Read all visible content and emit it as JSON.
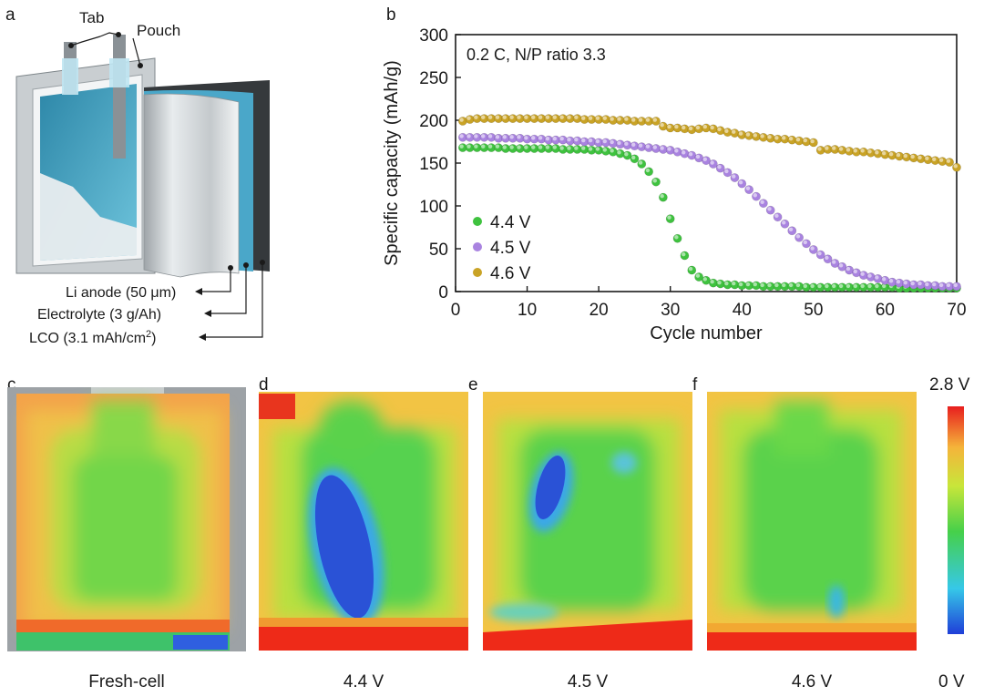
{
  "panel_labels": {
    "a": "a",
    "b": "b",
    "c": "c",
    "d": "d",
    "e": "e",
    "f": "f"
  },
  "schematic": {
    "tab_label": "Tab",
    "pouch_label": "Pouch",
    "anode_label": "Li anode (50 μm)",
    "electrolyte_label": "Electrolyte (3 g/Ah)",
    "lco_label": "LCO (3.1 mAh/cm",
    "lco_superscript": "2",
    "lco_suffix": ")"
  },
  "chart_data": {
    "type": "scatter",
    "title": "0.2 C, N/P ratio 3.3",
    "xlabel": "Cycle number",
    "ylabel": "Specific capacity (mAh/g)",
    "xlim": [
      0,
      70
    ],
    "ylim": [
      0,
      300
    ],
    "xticks": [
      0,
      10,
      20,
      30,
      40,
      50,
      60,
      70
    ],
    "yticks": [
      0,
      50,
      100,
      150,
      200,
      250,
      300
    ],
    "legend_position": "bottom-left",
    "series": [
      {
        "name": "4.4 V",
        "color": "#3fc23f",
        "x": [
          1,
          2,
          3,
          4,
          5,
          6,
          7,
          8,
          9,
          10,
          11,
          12,
          13,
          14,
          15,
          16,
          17,
          18,
          19,
          20,
          21,
          22,
          23,
          24,
          25,
          26,
          27,
          28,
          29,
          30,
          31,
          32,
          33,
          34,
          35,
          36,
          37,
          38,
          39,
          40,
          41,
          42,
          43,
          44,
          45,
          46,
          47,
          48,
          49,
          50,
          51,
          52,
          53,
          54,
          55,
          56,
          57,
          58,
          59,
          60,
          61,
          62,
          63,
          64,
          65,
          66,
          67,
          68,
          69,
          70
        ],
        "values": [
          168,
          168,
          168,
          168,
          168,
          168,
          167,
          167,
          167,
          167,
          167,
          167,
          167,
          167,
          166,
          166,
          166,
          166,
          165,
          165,
          164,
          163,
          161,
          159,
          155,
          149,
          140,
          128,
          110,
          85,
          62,
          42,
          25,
          17,
          13,
          10,
          9,
          8,
          8,
          7,
          7,
          7,
          6,
          6,
          6,
          6,
          6,
          6,
          5,
          5,
          5,
          5,
          5,
          5,
          5,
          5,
          5,
          5,
          5,
          5,
          5,
          4,
          4,
          4,
          4,
          4,
          4,
          4,
          4,
          4
        ]
      },
      {
        "name": "4.5 V",
        "color": "#a983e0",
        "x": [
          1,
          2,
          3,
          4,
          5,
          6,
          7,
          8,
          9,
          10,
          11,
          12,
          13,
          14,
          15,
          16,
          17,
          18,
          19,
          20,
          21,
          22,
          23,
          24,
          25,
          26,
          27,
          28,
          29,
          30,
          31,
          32,
          33,
          34,
          35,
          36,
          37,
          38,
          39,
          40,
          41,
          42,
          43,
          44,
          45,
          46,
          47,
          48,
          49,
          50,
          51,
          52,
          53,
          54,
          55,
          56,
          57,
          58,
          59,
          60,
          61,
          62,
          63,
          64,
          65,
          66,
          67,
          68,
          69,
          70
        ],
        "values": [
          180,
          180,
          180,
          180,
          180,
          179,
          179,
          179,
          179,
          178,
          178,
          178,
          177,
          177,
          177,
          176,
          176,
          175,
          175,
          174,
          174,
          173,
          172,
          171,
          170,
          169,
          168,
          167,
          166,
          165,
          163,
          161,
          159,
          156,
          153,
          149,
          144,
          139,
          133,
          126,
          119,
          111,
          103,
          95,
          87,
          79,
          71,
          63,
          56,
          49,
          43,
          38,
          33,
          29,
          25,
          22,
          19,
          17,
          15,
          13,
          11,
          10,
          9,
          8,
          8,
          7,
          7,
          6,
          6,
          6
        ]
      },
      {
        "name": "4.6 V",
        "color": "#c9a326",
        "x": [
          1,
          2,
          3,
          4,
          5,
          6,
          7,
          8,
          9,
          10,
          11,
          12,
          13,
          14,
          15,
          16,
          17,
          18,
          19,
          20,
          21,
          22,
          23,
          24,
          25,
          26,
          27,
          28,
          29,
          30,
          31,
          32,
          33,
          34,
          35,
          36,
          37,
          38,
          39,
          40,
          41,
          42,
          43,
          44,
          45,
          46,
          47,
          48,
          49,
          50,
          51,
          52,
          53,
          54,
          55,
          56,
          57,
          58,
          59,
          60,
          61,
          62,
          63,
          64,
          65,
          66,
          67,
          68,
          69,
          70
        ],
        "values": [
          199,
          201,
          202,
          202,
          202,
          202,
          202,
          202,
          202,
          202,
          202,
          202,
          202,
          202,
          202,
          202,
          202,
          201,
          201,
          201,
          201,
          200,
          200,
          200,
          199,
          199,
          199,
          199,
          193,
          191,
          191,
          190,
          189,
          190,
          191,
          190,
          188,
          186,
          185,
          183,
          182,
          181,
          180,
          179,
          178,
          178,
          177,
          176,
          175,
          174,
          165,
          166,
          166,
          165,
          164,
          163,
          163,
          162,
          161,
          160,
          159,
          158,
          157,
          156,
          155,
          154,
          153,
          152,
          151,
          145
        ]
      }
    ]
  },
  "maps": {
    "captions": [
      "Fresh-cell",
      "4.4 V",
      "4.5 V",
      "4.6 V"
    ],
    "colorbar_max": "2.8 V",
    "colorbar_min": "0 V"
  }
}
